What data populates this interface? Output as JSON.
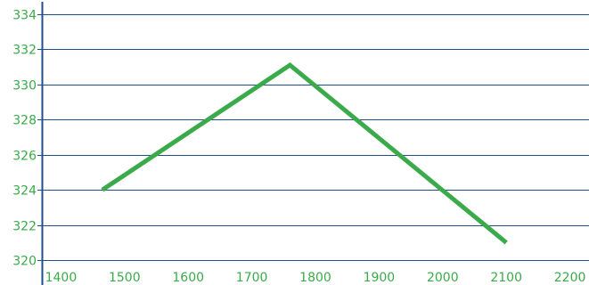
{
  "chart_data": {
    "type": "line",
    "title": "",
    "xlabel": "",
    "ylabel": "",
    "xlim": [
      1370,
      2230
    ],
    "ylim": [
      319.6,
      334.6
    ],
    "x_ticks": [
      1400,
      1500,
      1600,
      1700,
      1800,
      1900,
      2000,
      2100,
      2200
    ],
    "x_tick_labels": [
      "1400",
      "1500",
      "1600",
      "1700",
      "1800",
      "1900",
      "2000",
      "2100",
      "2200"
    ],
    "y_ticks": [
      320,
      322,
      324,
      326,
      328,
      330,
      332,
      334
    ],
    "y_tick_labels": [
      "320",
      "322",
      "324",
      "326",
      "328",
      "330",
      "332",
      "334"
    ],
    "grid": "horizontal",
    "series": [
      {
        "x": [
          1465,
          1760,
          2100
        ],
        "y": [
          324.0,
          331.1,
          321.0
        ]
      }
    ],
    "colors": {
      "line": "#3aaa4a",
      "tick_text": "#3aaa4a",
      "grid": "#1f4e8c",
      "axis": "#1f4e8c"
    }
  }
}
